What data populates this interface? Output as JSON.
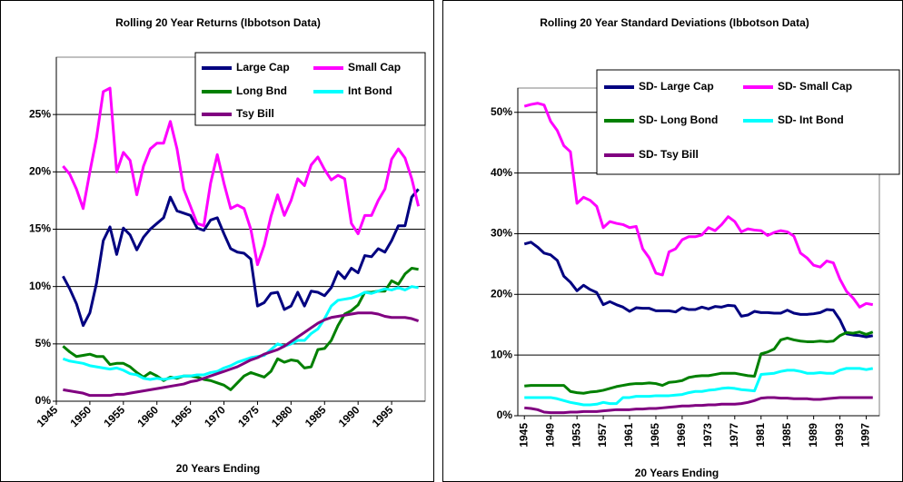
{
  "chart_data": [
    {
      "type": "line",
      "title": "Rolling 20 Year Returns  (Ibbotson Data)",
      "x_label": "20 Years Ending",
      "legend": "upper right",
      "grid": true,
      "x": [
        1946,
        1947,
        1948,
        1949,
        1950,
        1951,
        1952,
        1953,
        1954,
        1955,
        1956,
        1957,
        1958,
        1959,
        1960,
        1961,
        1962,
        1963,
        1964,
        1965,
        1966,
        1967,
        1968,
        1969,
        1970,
        1971,
        1972,
        1973,
        1974,
        1975,
        1976,
        1977,
        1978,
        1979,
        1980,
        1981,
        1982,
        1983,
        1984,
        1985,
        1986,
        1987,
        1988,
        1989,
        1990,
        1991,
        1992,
        1993,
        1994,
        1995,
        1996,
        1997,
        1998,
        1999
      ],
      "xlim": [
        1945,
        2000
      ],
      "xticks": [
        1945,
        1950,
        1955,
        1960,
        1965,
        1970,
        1975,
        1980,
        1985,
        1990,
        1995
      ],
      "ylim": [
        0,
        30
      ],
      "yticks": [
        {
          "value": 0,
          "label": "0%"
        },
        {
          "value": 5,
          "label": "5%"
        },
        {
          "value": 10,
          "label": "10%"
        },
        {
          "value": 15,
          "label": "15%"
        },
        {
          "value": 20,
          "label": "20%"
        },
        {
          "value": 25,
          "label": "25%"
        }
      ],
      "series": [
        {
          "name": "Large Cap",
          "color": "#000080",
          "values": [
            10.9,
            9.8,
            8.5,
            6.6,
            7.7,
            10.3,
            14.0,
            15.2,
            12.8,
            15.1,
            14.5,
            13.2,
            14.3,
            15.0,
            15.5,
            16.0,
            17.8,
            16.6,
            16.4,
            16.2,
            15.1,
            14.9,
            15.8,
            16.0,
            14.6,
            13.3,
            13.0,
            12.9,
            12.4,
            8.3,
            8.6,
            9.4,
            9.5,
            8.0,
            8.3,
            9.5,
            8.3,
            9.6,
            9.5,
            9.2,
            9.9,
            11.3,
            10.7,
            11.6,
            11.2,
            12.7,
            12.6,
            13.3,
            13.0,
            14.0,
            15.3,
            15.3,
            17.8,
            18.5
          ]
        },
        {
          "name": "Small Cap",
          "color": "#ff00ff",
          "values": [
            20.5,
            19.8,
            18.5,
            16.8,
            20.0,
            23.0,
            27.0,
            27.3,
            20.0,
            21.7,
            21.0,
            18.0,
            20.5,
            22.0,
            22.5,
            22.5,
            24.4,
            22.0,
            18.5,
            17.0,
            15.5,
            15.3,
            19.0,
            21.5,
            19.0,
            16.8,
            17.1,
            16.8,
            15.0,
            11.9,
            13.6,
            16.1,
            18.0,
            16.2,
            17.5,
            19.4,
            18.8,
            20.6,
            21.3,
            20.2,
            19.3,
            19.7,
            19.4,
            15.5,
            14.6,
            16.2,
            16.2,
            17.5,
            18.5,
            21.1,
            22.0,
            21.2,
            19.4,
            17.0
          ]
        },
        {
          "name": "Long Bnd",
          "color": "#008000",
          "values": [
            4.8,
            4.3,
            3.9,
            4.0,
            4.1,
            3.9,
            3.9,
            3.2,
            3.3,
            3.3,
            3.0,
            2.5,
            2.1,
            2.5,
            2.2,
            1.8,
            2.1,
            2.0,
            2.2,
            2.2,
            2.1,
            1.9,
            1.8,
            1.6,
            1.4,
            1.0,
            1.6,
            2.2,
            2.5,
            2.3,
            2.1,
            2.6,
            3.7,
            3.4,
            3.6,
            3.5,
            2.9,
            3.0,
            4.5,
            4.6,
            5.3,
            6.6,
            7.6,
            7.9,
            8.4,
            9.5,
            9.5,
            9.6,
            9.6,
            10.5,
            10.2,
            11.1,
            11.6,
            11.5
          ]
        },
        {
          "name": "Int Bond",
          "color": "#00ffff",
          "values": [
            3.7,
            3.5,
            3.4,
            3.3,
            3.1,
            3.0,
            2.9,
            2.8,
            2.9,
            2.7,
            2.4,
            2.3,
            2.0,
            1.9,
            2.0,
            1.9,
            2.0,
            2.1,
            2.2,
            2.2,
            2.3,
            2.3,
            2.5,
            2.6,
            2.9,
            3.1,
            3.4,
            3.6,
            3.8,
            3.9,
            4.0,
            4.5,
            5.0,
            4.8,
            5.0,
            5.3,
            5.3,
            5.9,
            6.3,
            7.2,
            8.3,
            8.8,
            8.9,
            9.0,
            9.2,
            9.5,
            9.4,
            9.6,
            9.8,
            9.7,
            9.9,
            9.7,
            10.0,
            9.9
          ]
        },
        {
          "name": "Tsy Bill",
          "color": "#800080",
          "values": [
            1.0,
            0.9,
            0.8,
            0.7,
            0.5,
            0.5,
            0.5,
            0.5,
            0.6,
            0.6,
            0.7,
            0.8,
            0.9,
            1.0,
            1.1,
            1.2,
            1.3,
            1.4,
            1.5,
            1.7,
            1.8,
            2.0,
            2.2,
            2.4,
            2.6,
            2.8,
            3.0,
            3.3,
            3.6,
            3.8,
            4.1,
            4.3,
            4.5,
            4.8,
            5.2,
            5.6,
            6.0,
            6.4,
            6.8,
            7.1,
            7.3,
            7.4,
            7.5,
            7.6,
            7.7,
            7.7,
            7.7,
            7.6,
            7.4,
            7.3,
            7.3,
            7.3,
            7.2,
            7.0
          ]
        }
      ]
    },
    {
      "type": "line",
      "title": "Rolling 20 Year Standard Deviations (Ibbotson Data)",
      "x_label": "20 Years Ending",
      "legend": "upper right",
      "grid": true,
      "x": [
        1945,
        1946,
        1947,
        1948,
        1949,
        1950,
        1951,
        1952,
        1953,
        1954,
        1955,
        1956,
        1957,
        1958,
        1959,
        1960,
        1961,
        1962,
        1963,
        1964,
        1965,
        1966,
        1967,
        1968,
        1969,
        1970,
        1971,
        1972,
        1973,
        1974,
        1975,
        1976,
        1977,
        1978,
        1979,
        1980,
        1981,
        1982,
        1983,
        1984,
        1985,
        1986,
        1987,
        1988,
        1989,
        1990,
        1991,
        1992,
        1993,
        1994,
        1995,
        1996,
        1997,
        1998
      ],
      "xlim": [
        1944,
        1999
      ],
      "xticks": [
        1945,
        1949,
        1953,
        1957,
        1961,
        1965,
        1969,
        1973,
        1977,
        1981,
        1985,
        1989,
        1993,
        1997
      ],
      "ylim": [
        0,
        54
      ],
      "yticks": [
        {
          "value": 0,
          "label": "0%"
        },
        {
          "value": 10,
          "label": "10%"
        },
        {
          "value": 20,
          "label": "20%"
        },
        {
          "value": 30,
          "label": "30%"
        },
        {
          "value": 40,
          "label": "40%"
        },
        {
          "value": 50,
          "label": "50%"
        }
      ],
      "series": [
        {
          "name": "SD- Large Cap",
          "color": "#000080",
          "values": [
            28.3,
            28.6,
            27.8,
            26.8,
            26.5,
            25.6,
            23.0,
            22.0,
            20.6,
            21.5,
            20.8,
            20.3,
            18.3,
            18.8,
            18.3,
            17.9,
            17.2,
            17.8,
            17.7,
            17.7,
            17.3,
            17.3,
            17.3,
            17.1,
            17.8,
            17.5,
            17.5,
            17.9,
            17.6,
            18.0,
            17.9,
            18.2,
            18.1,
            16.4,
            16.6,
            17.2,
            17.0,
            17.0,
            16.9,
            16.9,
            17.4,
            16.9,
            16.7,
            16.7,
            16.8,
            17.0,
            17.5,
            17.4,
            15.8,
            13.5,
            13.3,
            13.2,
            13.0,
            13.2
          ]
        },
        {
          "name": "SD- Small Cap",
          "color": "#ff00ff",
          "values": [
            51.0,
            51.3,
            51.5,
            51.2,
            48.5,
            47.0,
            44.5,
            43.5,
            35.0,
            36.0,
            35.5,
            34.5,
            31.0,
            32.0,
            31.7,
            31.5,
            31.0,
            31.2,
            27.5,
            26.0,
            23.5,
            23.2,
            27.0,
            27.5,
            29.0,
            29.5,
            29.5,
            29.8,
            31.0,
            30.5,
            31.5,
            32.8,
            32.0,
            30.3,
            30.8,
            30.6,
            30.5,
            29.7,
            30.2,
            30.5,
            30.3,
            29.6,
            26.8,
            26.0,
            24.8,
            24.5,
            25.5,
            25.2,
            22.5,
            20.5,
            19.4,
            17.9,
            18.5,
            18.3
          ]
        },
        {
          "name": "SD- Long Bond",
          "color": "#008000",
          "values": [
            4.9,
            5.0,
            5.0,
            5.0,
            5.0,
            5.0,
            5.0,
            4.0,
            3.8,
            3.7,
            3.9,
            4.0,
            4.2,
            4.5,
            4.8,
            5.0,
            5.2,
            5.3,
            5.3,
            5.4,
            5.3,
            5.0,
            5.5,
            5.6,
            5.8,
            6.3,
            6.5,
            6.6,
            6.6,
            6.8,
            7.0,
            7.0,
            7.0,
            6.8,
            6.6,
            6.5,
            10.2,
            10.5,
            11.0,
            12.5,
            12.8,
            12.5,
            12.3,
            12.2,
            12.2,
            12.3,
            12.2,
            12.3,
            13.2,
            13.7,
            13.6,
            13.8,
            13.4,
            13.8
          ]
        },
        {
          "name": "SD- Int Bond",
          "color": "#00ffff",
          "values": [
            3.0,
            3.0,
            3.0,
            3.0,
            3.0,
            2.8,
            2.5,
            2.2,
            2.0,
            1.8,
            1.8,
            1.9,
            2.2,
            2.0,
            2.0,
            3.0,
            3.0,
            3.2,
            3.2,
            3.2,
            3.3,
            3.3,
            3.3,
            3.4,
            3.5,
            3.8,
            4.0,
            4.0,
            4.2,
            4.3,
            4.5,
            4.6,
            4.5,
            4.3,
            4.2,
            4.1,
            6.8,
            6.9,
            7.0,
            7.3,
            7.5,
            7.5,
            7.3,
            7.0,
            7.0,
            7.1,
            7.0,
            7.0,
            7.5,
            7.8,
            7.8,
            7.8,
            7.6,
            7.8
          ]
        },
        {
          "name": "SD- Tsy Bill",
          "color": "#800080",
          "values": [
            1.3,
            1.2,
            1.0,
            0.6,
            0.5,
            0.5,
            0.5,
            0.6,
            0.6,
            0.7,
            0.7,
            0.7,
            0.8,
            0.9,
            1.0,
            1.0,
            1.0,
            1.1,
            1.1,
            1.2,
            1.2,
            1.3,
            1.4,
            1.5,
            1.6,
            1.6,
            1.7,
            1.7,
            1.8,
            1.8,
            1.9,
            1.9,
            1.9,
            2.0,
            2.2,
            2.5,
            2.9,
            3.0,
            3.0,
            2.9,
            2.9,
            2.8,
            2.8,
            2.8,
            2.7,
            2.7,
            2.8,
            2.9,
            3.0,
            3.0,
            3.0,
            3.0,
            3.0,
            3.0
          ]
        }
      ]
    }
  ]
}
